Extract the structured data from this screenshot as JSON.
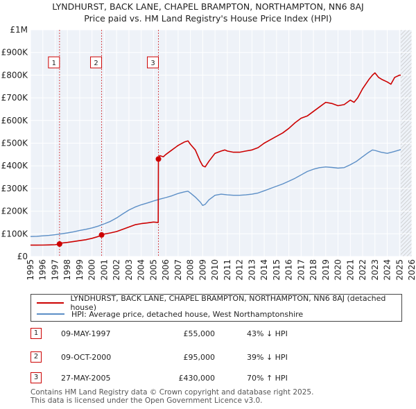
{
  "title": "LYNDHURST, BACK LANE, CHAPEL BRAMPTON, NORTHAMPTON, NN6 8AJ",
  "subtitle": "Price paid vs. HM Land Registry's House Price Index (HPI)",
  "colors": {
    "property": "#cc0000",
    "hpi": "#5b8ec6",
    "grid": "#dddddd",
    "plot_bg": "#eef2f8"
  },
  "chart_data": {
    "type": "line",
    "x_ticks": [
      "1995",
      "1996",
      "1997",
      "1998",
      "1999",
      "2000",
      "2001",
      "2002",
      "2003",
      "2004",
      "2005",
      "2006",
      "2007",
      "2008",
      "2009",
      "2010",
      "2011",
      "2012",
      "2013",
      "2014",
      "2015",
      "2016",
      "2017",
      "2018",
      "2019",
      "2020",
      "2021",
      "2022",
      "2023",
      "2024",
      "2025",
      "2026"
    ],
    "y_ticks": [
      {
        "value": 0,
        "label": "£0"
      },
      {
        "value": 100000,
        "label": "£100K"
      },
      {
        "value": 200000,
        "label": "£200K"
      },
      {
        "value": 300000,
        "label": "£300K"
      },
      {
        "value": 400000,
        "label": "£400K"
      },
      {
        "value": 500000,
        "label": "£500K"
      },
      {
        "value": 600000,
        "label": "£600K"
      },
      {
        "value": 700000,
        "label": "£700K"
      },
      {
        "value": 800000,
        "label": "£800K"
      },
      {
        "value": 900000,
        "label": "£900K"
      },
      {
        "value": 1000000,
        "label": "£1M"
      }
    ],
    "xlim": [
      1995,
      2026
    ],
    "ylim": [
      0,
      1000000
    ],
    "future_from": 2025.1,
    "series": [
      {
        "name": "LYNDHURST, BACK LANE, CHAPEL BRAMPTON, NORTHAMPTON, NN6 8AJ (detached house)",
        "key": "property",
        "x": [
          1995.0,
          1995.5,
          1996.0,
          1996.5,
          1997.0,
          1997.36,
          1997.5,
          1998.0,
          1998.5,
          1999.0,
          1999.5,
          2000.0,
          2000.5,
          2000.78,
          2001.0,
          2001.5,
          2002.0,
          2002.5,
          2003.0,
          2003.5,
          2004.0,
          2004.5,
          2005.0,
          2005.38,
          2005.4,
          2005.5,
          2005.8,
          2006.0,
          2006.5,
          2007.0,
          2007.5,
          2007.8,
          2008.0,
          2008.4,
          2008.8,
          2009.0,
          2009.2,
          2009.5,
          2010.0,
          2010.5,
          2010.8,
          2011.0,
          2011.5,
          2012.0,
          2012.5,
          2013.0,
          2013.5,
          2014.0,
          2014.5,
          2015.0,
          2015.5,
          2016.0,
          2016.5,
          2017.0,
          2017.5,
          2018.0,
          2018.5,
          2019.0,
          2019.5,
          2020.0,
          2020.5,
          2021.0,
          2021.3,
          2021.6,
          2022.0,
          2022.5,
          2022.8,
          2023.0,
          2023.3,
          2023.6,
          2024.0,
          2024.3,
          2024.6,
          2025.0,
          2025.1
        ],
        "y": [
          50000,
          50000,
          50500,
          51000,
          52000,
          55000,
          59000,
          62000,
          66000,
          70000,
          74000,
          80000,
          88000,
          95000,
          99000,
          104000,
          110000,
          120000,
          130000,
          140000,
          145000,
          148000,
          152000,
          150000,
          430000,
          445000,
          440000,
          450000,
          470000,
          490000,
          505000,
          510000,
          495000,
          470000,
          420000,
          400000,
          395000,
          420000,
          455000,
          465000,
          470000,
          465000,
          460000,
          460000,
          465000,
          470000,
          480000,
          500000,
          515000,
          530000,
          545000,
          565000,
          590000,
          610000,
          620000,
          640000,
          660000,
          680000,
          675000,
          665000,
          670000,
          690000,
          680000,
          700000,
          740000,
          780000,
          800000,
          810000,
          790000,
          780000,
          770000,
          760000,
          790000,
          800000,
          800000
        ]
      },
      {
        "name": "HPI: Average price, detached house, West Northamptonshire",
        "key": "hpi",
        "x": [
          1995.0,
          1995.5,
          1996.0,
          1996.5,
          1997.0,
          1997.5,
          1998.0,
          1998.5,
          1999.0,
          1999.5,
          2000.0,
          2000.5,
          2001.0,
          2001.5,
          2002.0,
          2002.5,
          2003.0,
          2003.5,
          2004.0,
          2004.5,
          2005.0,
          2005.5,
          2006.0,
          2006.5,
          2007.0,
          2007.5,
          2007.8,
          2008.0,
          2008.4,
          2008.8,
          2009.0,
          2009.2,
          2009.5,
          2010.0,
          2010.5,
          2011.0,
          2011.5,
          2012.0,
          2012.5,
          2013.0,
          2013.5,
          2014.0,
          2014.5,
          2015.0,
          2015.5,
          2016.0,
          2016.5,
          2017.0,
          2017.5,
          2018.0,
          2018.5,
          2019.0,
          2019.5,
          2020.0,
          2020.5,
          2021.0,
          2021.5,
          2022.0,
          2022.5,
          2022.8,
          2023.0,
          2023.5,
          2024.0,
          2024.5,
          2025.0,
          2025.1
        ],
        "y": [
          88000,
          89000,
          91000,
          93000,
          96000,
          100000,
          104000,
          109000,
          115000,
          120000,
          126000,
          134000,
          144000,
          155000,
          170000,
          188000,
          205000,
          218000,
          228000,
          236000,
          245000,
          253000,
          260000,
          268000,
          278000,
          285000,
          288000,
          280000,
          262000,
          240000,
          225000,
          230000,
          250000,
          270000,
          275000,
          272000,
          270000,
          270000,
          272000,
          275000,
          280000,
          290000,
          300000,
          310000,
          320000,
          332000,
          345000,
          360000,
          375000,
          385000,
          392000,
          395000,
          393000,
          390000,
          392000,
          405000,
          420000,
          440000,
          460000,
          470000,
          468000,
          460000,
          455000,
          462000,
          470000,
          472000
        ]
      }
    ],
    "transactions": [
      {
        "id": "1",
        "x": 1997.36,
        "y": 55000
      },
      {
        "id": "2",
        "x": 2000.78,
        "y": 95000
      },
      {
        "id": "3",
        "x": 2005.4,
        "y": 430000
      }
    ]
  },
  "legend": {
    "property": "LYNDHURST, BACK LANE, CHAPEL BRAMPTON, NORTHAMPTON, NN6 8AJ (detached house)",
    "hpi": "HPI: Average price, detached house, West Northamptonshire"
  },
  "table": [
    {
      "id": "1",
      "date": "09-MAY-1997",
      "price": "£55,000",
      "hpi": "43% ↓ HPI"
    },
    {
      "id": "2",
      "date": "09-OCT-2000",
      "price": "£95,000",
      "hpi": "39% ↓ HPI"
    },
    {
      "id": "3",
      "date": "27-MAY-2005",
      "price": "£430,000",
      "hpi": "70% ↑ HPI"
    }
  ],
  "footer": {
    "line1": "Contains HM Land Registry data © Crown copyright and database right 2025.",
    "line2": "This data is licensed under the Open Government Licence v3.0."
  }
}
